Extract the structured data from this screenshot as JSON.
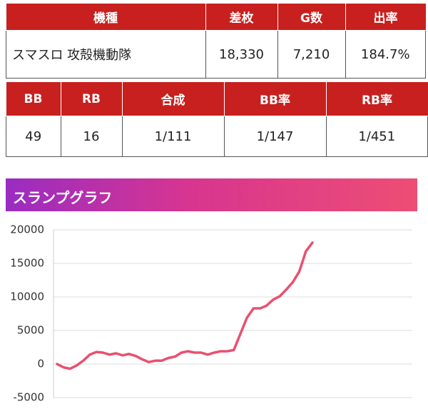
{
  "tables": [
    {
      "headers": [
        "機種",
        "差枚",
        "G数",
        "出率"
      ],
      "rows": [
        [
          "スマスロ 攻殻機動隊",
          "18,330",
          "7,210",
          "184.7%"
        ]
      ]
    },
    {
      "headers": [
        "BB",
        "RB",
        "合成",
        "BB率",
        "RB率"
      ],
      "rows": [
        [
          "49",
          "16",
          "1/111",
          "1/147",
          "1/451"
        ]
      ]
    }
  ],
  "chart_data": {
    "type": "line",
    "title": "スランプグラフ",
    "series": [
      {
        "name": "差枚",
        "color": "#e9506f",
        "values": [
          0,
          -500,
          -700,
          -200,
          500,
          1400,
          1800,
          1700,
          1400,
          1600,
          1300,
          1500,
          1200,
          700,
          300,
          500,
          500,
          900,
          1100,
          1700,
          1900,
          1700,
          1700,
          1400,
          1700,
          1900,
          1900,
          2100,
          4500,
          6900,
          8300,
          8300,
          8700,
          9600,
          10100,
          11100,
          12200,
          13800,
          16800,
          18100
        ]
      }
    ],
    "ylim": [
      -5000,
      20000
    ],
    "yticks": [
      -5000,
      0,
      5000,
      10000,
      15000,
      20000
    ],
    "grid": true
  }
}
